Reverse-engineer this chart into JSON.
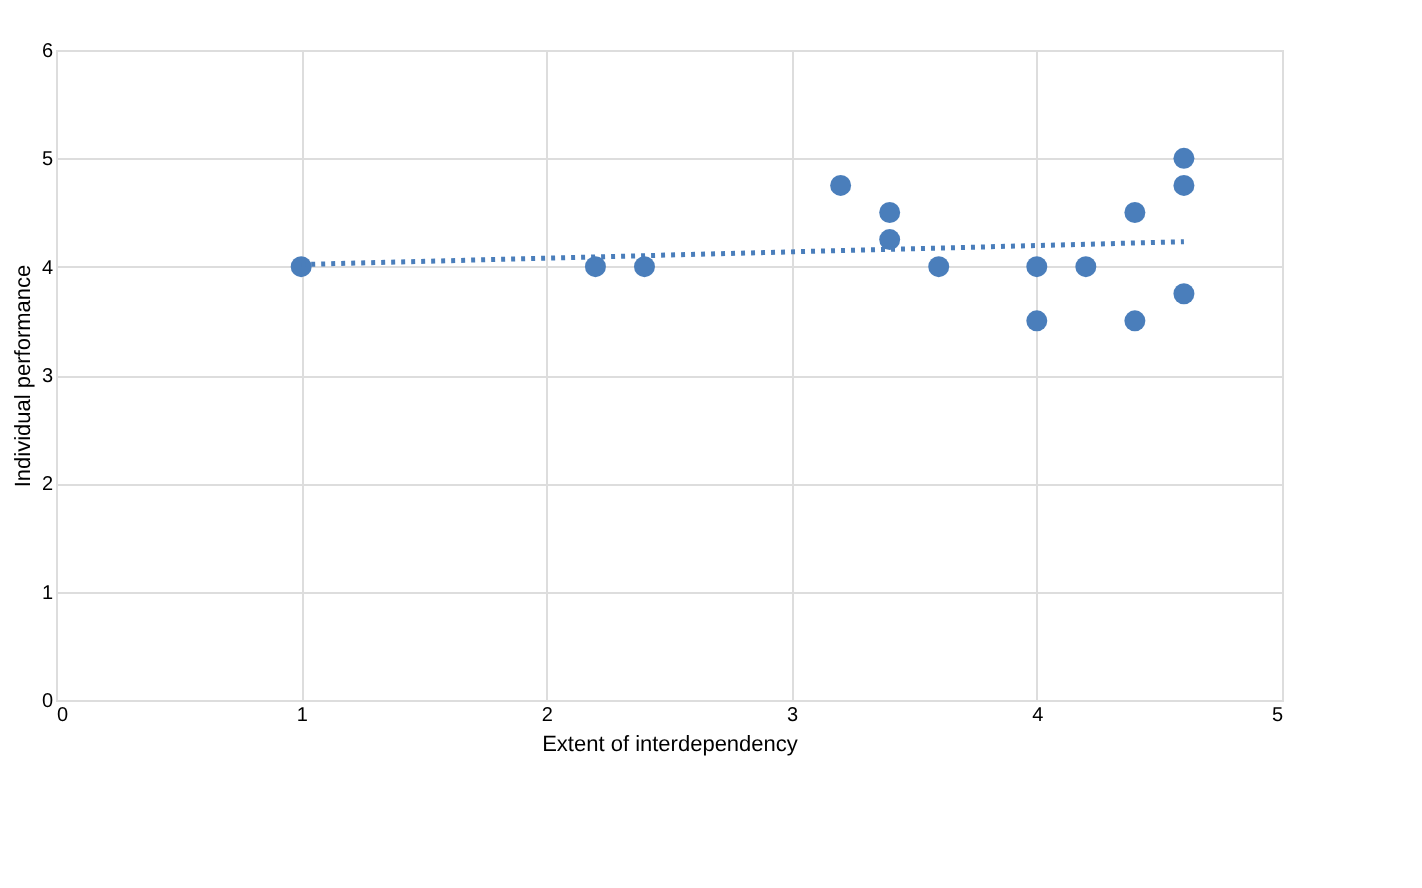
{
  "chart_data": {
    "type": "scatter",
    "xlabel": "Extent of interdependency",
    "ylabel": "Individual performance",
    "xlim": [
      0,
      5
    ],
    "xticks": [
      0,
      1,
      2,
      3,
      4,
      5
    ],
    "ylim": [
      0,
      6
    ],
    "yticks": [
      0,
      1,
      2,
      3,
      4,
      5,
      6
    ],
    "grid": true,
    "series": [
      {
        "marker": "circle",
        "color": "#4a7ebb",
        "x": [
          1,
          2.2,
          2.4,
          3.2,
          3.4,
          3.4,
          3.6,
          4,
          4,
          4.2,
          4.4,
          4.4,
          4.6,
          4.6,
          4.6
        ],
        "values": [
          4,
          4,
          4,
          4.75,
          4.5,
          4.25,
          4,
          4,
          3.5,
          4,
          4.5,
          3.5,
          5,
          4.75,
          3.75
        ]
      },
      {
        "type": "line",
        "color": "#4a7ebb",
        "line_style": "dotted",
        "x": [
          1,
          4.6
        ],
        "values": [
          4.02,
          4.23
        ]
      }
    ]
  }
}
